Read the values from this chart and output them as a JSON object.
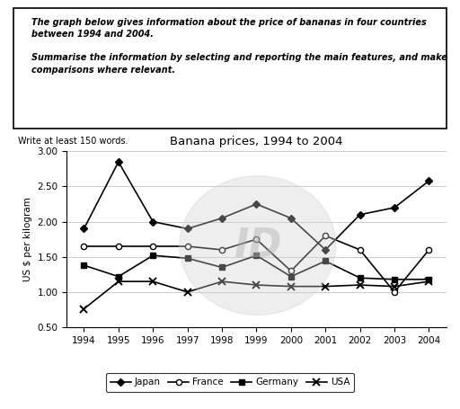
{
  "title": "Banana prices, 1994 to 2004",
  "ylabel": "US $ per kilogram",
  "years": [
    1994,
    1995,
    1996,
    1997,
    1998,
    1999,
    2000,
    2001,
    2002,
    2003,
    2004
  ],
  "japan": [
    1.9,
    2.85,
    2.0,
    1.9,
    2.05,
    2.25,
    2.05,
    1.6,
    2.1,
    2.2,
    2.58
  ],
  "france": [
    1.65,
    1.65,
    1.65,
    1.65,
    1.6,
    1.75,
    1.3,
    1.8,
    1.6,
    1.0,
    1.6
  ],
  "germany": [
    1.38,
    1.22,
    1.52,
    1.48,
    1.35,
    1.52,
    1.22,
    1.44,
    1.2,
    1.18,
    1.18
  ],
  "usa": [
    0.76,
    1.15,
    1.15,
    1.0,
    1.15,
    1.1,
    1.08,
    1.08,
    1.1,
    1.08,
    1.15
  ],
  "ylim": [
    0.5,
    3.0
  ],
  "yticks": [
    0.5,
    1.0,
    1.5,
    2.0,
    2.5,
    3.0
  ],
  "box_text": "The graph below gives information about the price of bananas in four countries\nbetween 1994 and 2004.\n\nSummarise the information by selecting and reporting the main features, and make\ncomparisons where relevant.",
  "bottom_text": "Write at least 150 words.",
  "bg_color": "#ffffff"
}
